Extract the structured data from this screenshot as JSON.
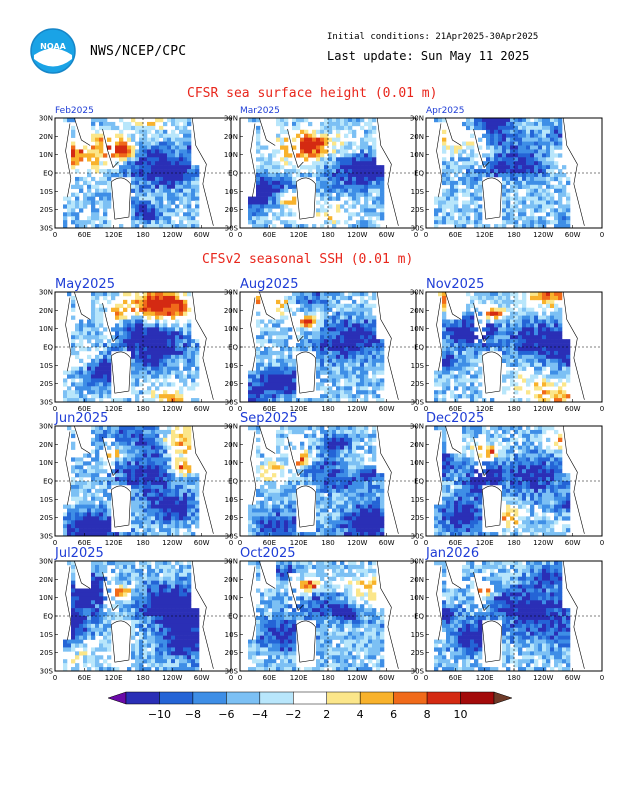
{
  "header": {
    "agency": "NWS/NCEP/CPC",
    "initial_conditions": "Initial conditions: 21Apr2025-30Apr2025",
    "last_update": "Last update: Sun May 11 2025",
    "logo_text": "NOAA"
  },
  "sections": {
    "observed_title": "CFSR sea surface height (0.01 m)",
    "forecast_title": "CFSv2 seasonal SSH (0.01 m)"
  },
  "axes": {
    "lat_ticks": [
      "30N",
      "20N",
      "10N",
      "EQ",
      "10S",
      "20S",
      "30S"
    ],
    "lon_ticks": [
      "0",
      "60E",
      "120E",
      "180",
      "120W",
      "60W",
      "0"
    ]
  },
  "panels": [
    {
      "label": "Feb2025",
      "kind": "observed"
    },
    {
      "label": "Mar2025",
      "kind": "observed"
    },
    {
      "label": "Apr2025",
      "kind": "observed"
    },
    {
      "label": "May2025",
      "kind": "forecast"
    },
    {
      "label": "Aug2025",
      "kind": "forecast"
    },
    {
      "label": "Nov2025",
      "kind": "forecast"
    },
    {
      "label": "Jun2025",
      "kind": "forecast"
    },
    {
      "label": "Sep2025",
      "kind": "forecast"
    },
    {
      "label": "Dec2025",
      "kind": "forecast"
    },
    {
      "label": "Jul2025",
      "kind": "forecast"
    },
    {
      "label": "Oct2025",
      "kind": "forecast"
    },
    {
      "label": "Jan2026",
      "kind": "forecast"
    }
  ],
  "colorbar": {
    "ticks": [
      "−10",
      "−8",
      "−6",
      "−4",
      "−2",
      "2",
      "4",
      "6",
      "8",
      "10"
    ],
    "colors": [
      "#2a2fb6",
      "#2464d6",
      "#3e8ee6",
      "#7cc0f4",
      "#b8e6fb",
      "#ffffff",
      "#fbe68a",
      "#f8b22c",
      "#f06a1a",
      "#d42a12",
      "#a30a0a"
    ],
    "under_color": "#6a0aa8",
    "over_color": "#6e3a28"
  }
}
